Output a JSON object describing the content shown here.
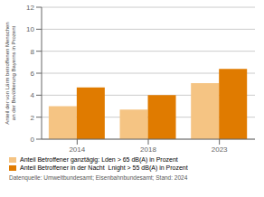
{
  "chart_data": {
    "type": "bar",
    "categories": [
      "2014",
      "2018",
      "2023"
    ],
    "series": [
      {
        "name": "Anteil Betroffener ganztägig: Lden > 65 dB(A) in Prozent",
        "color": "#f5c483",
        "values": [
          3.0,
          2.7,
          5.1
        ]
      },
      {
        "name": "Anteil Betroffener in der Nacht  Lnight > 55 dB(A) in Prozent",
        "color": "#e07b00",
        "values": [
          4.7,
          4.0,
          6.4
        ]
      }
    ],
    "ylabel": "Anteil der von Lärm betroffenen Menschen\nan der Bevölkerung Bayerns in Prozent",
    "ylim": [
      0,
      12
    ],
    "yticks": [
      0,
      2,
      4,
      6,
      8,
      10,
      12
    ],
    "grid": true,
    "legend": "bottom",
    "source": "Datenquelle: Umweltbundesamt; Eisenbahnbundesamt; Stand: 2024"
  }
}
